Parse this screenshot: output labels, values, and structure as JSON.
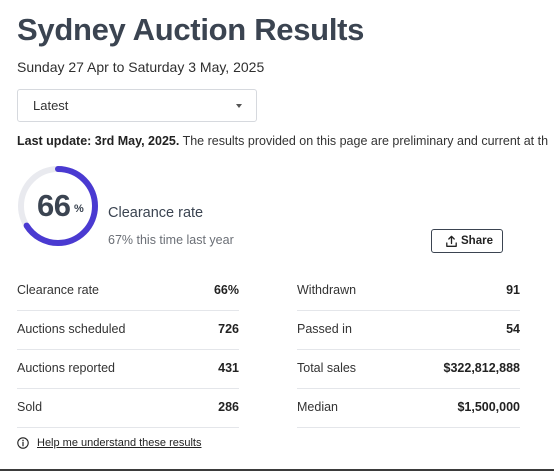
{
  "page": {
    "title": "Sydney Auction Results",
    "subtitle": "Sunday 27 Apr to Saturday 3 May, 2025"
  },
  "filter": {
    "selected": "Latest"
  },
  "update": {
    "bold": "Last update: 3rd May, 2025.",
    "text": " The results provided on this page are preliminary and current at th"
  },
  "clearance": {
    "value": "66",
    "unit": "%",
    "percent": 66,
    "label": "Clearance rate",
    "last_year": "67% this time last year",
    "ring_color": "#4a3ad1"
  },
  "share": {
    "label": "Share"
  },
  "stats_left": [
    {
      "label": "Clearance rate",
      "value": "66%"
    },
    {
      "label": "Auctions scheduled",
      "value": "726"
    },
    {
      "label": "Auctions reported",
      "value": "431"
    },
    {
      "label": "Sold",
      "value": "286"
    }
  ],
  "stats_right": [
    {
      "label": "Withdrawn",
      "value": "91"
    },
    {
      "label": "Passed in",
      "value": "54"
    },
    {
      "label": "Total sales",
      "value": "$322,812,888"
    },
    {
      "label": "Median",
      "value": "$1,500,000"
    }
  ],
  "help": {
    "label": "Help me understand these results"
  }
}
